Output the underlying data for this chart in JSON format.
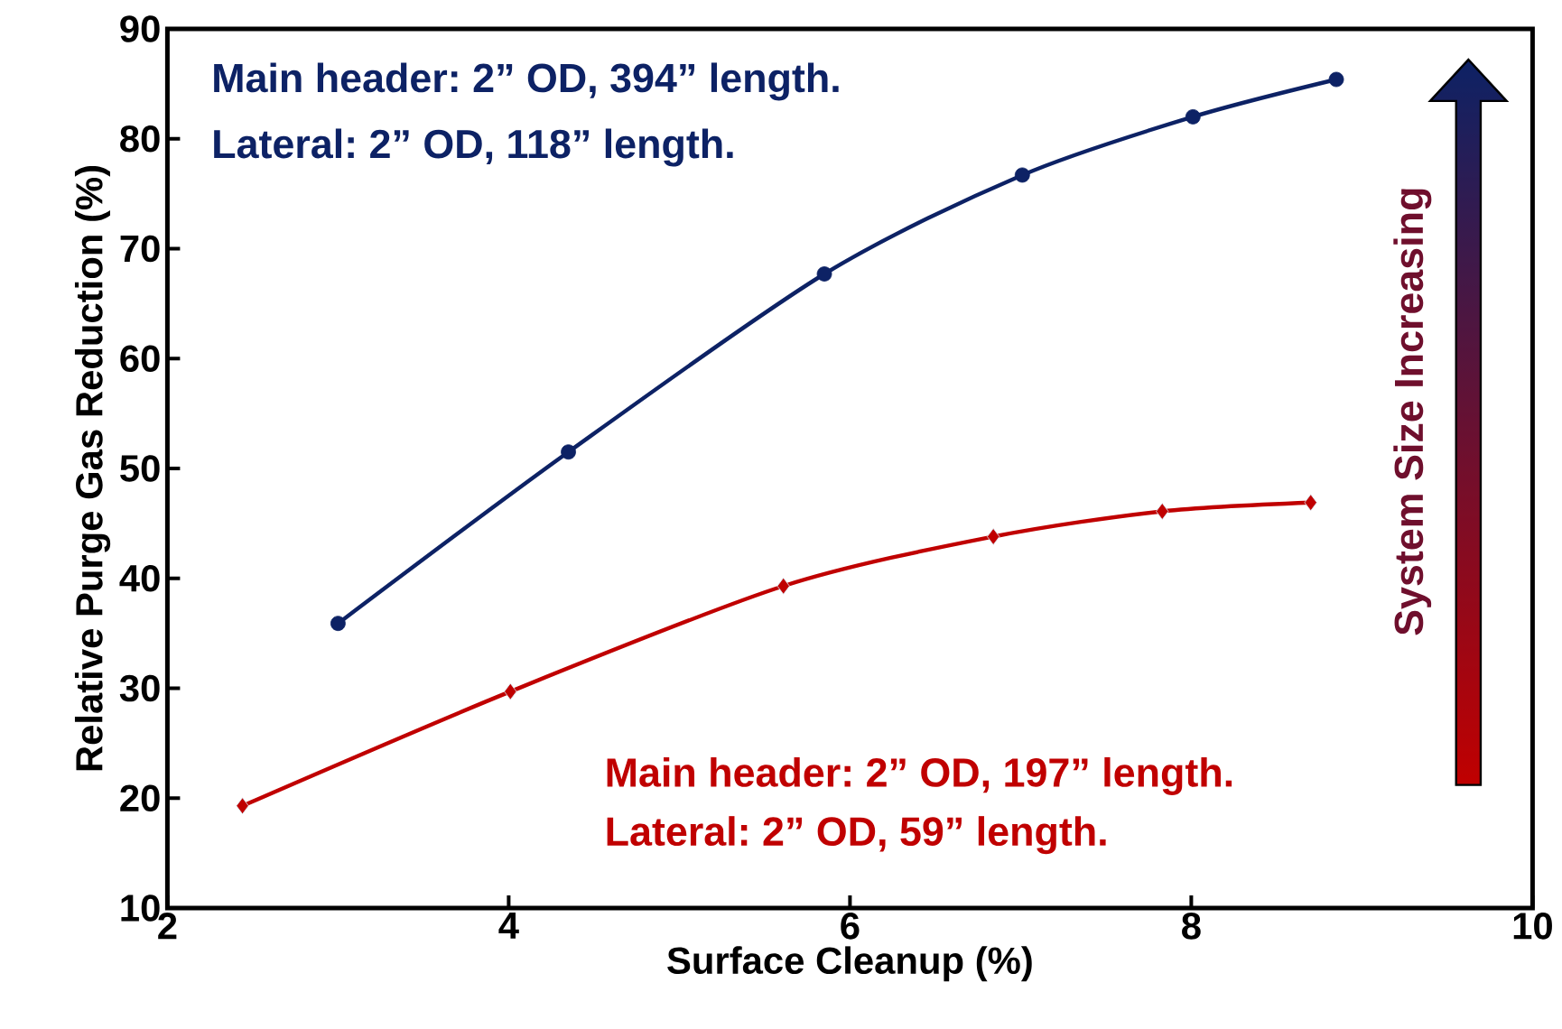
{
  "chart_data": {
    "type": "line",
    "xlabel": "Surface Cleanup (%)",
    "ylabel": "Relative Purge Gas Reduction (%)",
    "xlim": [
      2,
      10
    ],
    "ylim": [
      10,
      90
    ],
    "xticks": [
      2,
      4,
      6,
      8,
      10
    ],
    "yticks": [
      10,
      20,
      30,
      40,
      50,
      60,
      70,
      80,
      90
    ],
    "series": [
      {
        "color": "#0d2265",
        "marker": "circle",
        "x": [
          3.0,
          4.35,
          5.85,
          7.01,
          8.01,
          8.85
        ],
        "values": [
          35.9,
          51.5,
          67.7,
          76.7,
          82.0,
          85.4
        ]
      },
      {
        "color": "#c00000",
        "marker": "diamond",
        "x": [
          2.44,
          4.01,
          5.61,
          6.84,
          7.83,
          8.7
        ],
        "values": [
          19.3,
          29.7,
          39.3,
          43.8,
          46.1,
          46.9
        ]
      }
    ],
    "annotations": [
      "Main header: 2” OD, 394” length.",
      "Lateral: 2” OD, 118” length.",
      "Main header: 2” OD, 197” length.",
      "Lateral: 2” OD, 59” length.",
      "System Size Increasing"
    ]
  }
}
